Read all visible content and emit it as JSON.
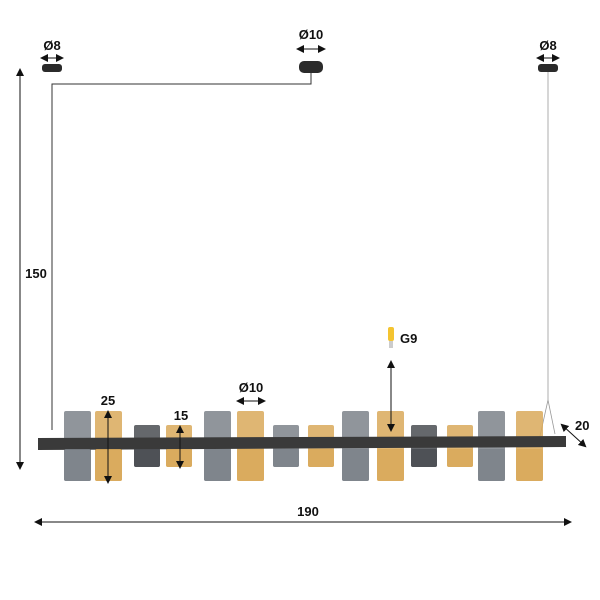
{
  "labels": {
    "canopy_left_diameter": "Ø8",
    "canopy_center_diameter": "Ø10",
    "canopy_right_diameter": "Ø8",
    "drop_height": "150",
    "tall_shade_height": "25",
    "short_shade_height": "15",
    "shade_diameter": "Ø10",
    "bulb_type": "G9",
    "depth": "20",
    "width": "190"
  },
  "colors": {
    "smoke_glass": "#7d828a",
    "dark_glass": "#4a4d52",
    "amber_glass": "#d9a95a",
    "frame": "#3a3a3a",
    "bulb": "#f4c430"
  },
  "shades": [
    "smoke-tall",
    "amber-tall",
    "dark-short",
    "amber-short",
    "smoke-tall",
    "amber-tall",
    "smoke-short",
    "amber-short",
    "smoke-tall",
    "amber-tall",
    "dark-short",
    "amber-short",
    "smoke-tall",
    "amber-tall"
  ]
}
